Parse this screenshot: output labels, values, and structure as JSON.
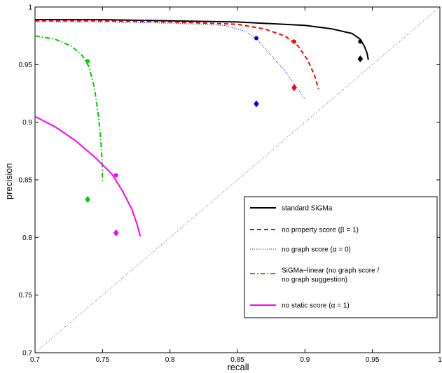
{
  "chart_data": {
    "type": "line",
    "title": "",
    "xlabel": "recall",
    "ylabel": "precision",
    "xlim": [
      0.7,
      1.0
    ],
    "ylim": [
      0.7,
      1.0
    ],
    "xticks": [
      "0.7",
      "0.75",
      "0.8",
      "0.85",
      "0.9",
      "0.95",
      "1"
    ],
    "yticks": [
      "0.7",
      "0.75",
      "0.8",
      "0.85",
      "0.9",
      "0.95",
      "1"
    ],
    "grid": false,
    "legend_position": "lower-right",
    "diagonal_reference": true,
    "series": [
      {
        "name": "standard SiGMa",
        "color": "#000000",
        "dash": "solid",
        "x": [
          0.7,
          0.75,
          0.8,
          0.85,
          0.9,
          0.92,
          0.935,
          0.941,
          0.944,
          0.946,
          0.947
        ],
        "y": [
          0.989,
          0.989,
          0.988,
          0.987,
          0.984,
          0.981,
          0.977,
          0.972,
          0.966,
          0.96,
          0.954
        ],
        "dot": {
          "x": 0.941,
          "y": 0.97
        },
        "diamond": {
          "x": 0.941,
          "y": 0.955
        }
      },
      {
        "name": "no property score (β = 1)",
        "color": "#ff0000",
        "dash": "dashed",
        "x": [
          0.7,
          0.75,
          0.8,
          0.85,
          0.87,
          0.885,
          0.895,
          0.902,
          0.907,
          0.91
        ],
        "y": [
          0.988,
          0.988,
          0.987,
          0.985,
          0.981,
          0.975,
          0.966,
          0.954,
          0.941,
          0.929
        ],
        "dot": {
          "x": 0.892,
          "y": 0.97
        },
        "diamond": {
          "x": 0.892,
          "y": 0.93
        }
      },
      {
        "name": "no graph score (α = 0)",
        "color": "#0000ff",
        "dash": "dotted",
        "x": [
          0.7,
          0.75,
          0.8,
          0.84,
          0.856,
          0.866,
          0.875,
          0.885,
          0.9
        ],
        "y": [
          0.987,
          0.987,
          0.986,
          0.984,
          0.979,
          0.97,
          0.958,
          0.945,
          0.92
        ],
        "dot": {
          "x": 0.864,
          "y": 0.973
        },
        "diamond": {
          "x": 0.864,
          "y": 0.916
        }
      },
      {
        "name": "SiGMa−linear (no graph score / no graph suggestion)",
        "legend_lines": [
          "SiGMa−linear (no graph score /",
          "no graph suggestion)"
        ],
        "color": "#00cc00",
        "dash": "dashdot",
        "x": [
          0.7,
          0.715,
          0.727,
          0.735,
          0.74,
          0.744,
          0.747,
          0.749,
          0.75,
          0.75
        ],
        "y": [
          0.975,
          0.972,
          0.966,
          0.958,
          0.948,
          0.93,
          0.905,
          0.88,
          0.86,
          0.849
        ],
        "dot": {
          "x": 0.739,
          "y": 0.953
        },
        "diamond": {
          "x": 0.739,
          "y": 0.833
        }
      },
      {
        "name": "no static score (α = 1)",
        "color": "#ff00ff",
        "dash": "solid",
        "x": [
          0.7,
          0.715,
          0.73,
          0.745,
          0.757,
          0.765,
          0.772,
          0.776,
          0.778
        ],
        "y": [
          0.905,
          0.896,
          0.884,
          0.869,
          0.855,
          0.84,
          0.824,
          0.81,
          0.801
        ],
        "dot": {
          "x": 0.76,
          "y": 0.854
        },
        "diamond": {
          "x": 0.76,
          "y": 0.804
        }
      }
    ]
  }
}
